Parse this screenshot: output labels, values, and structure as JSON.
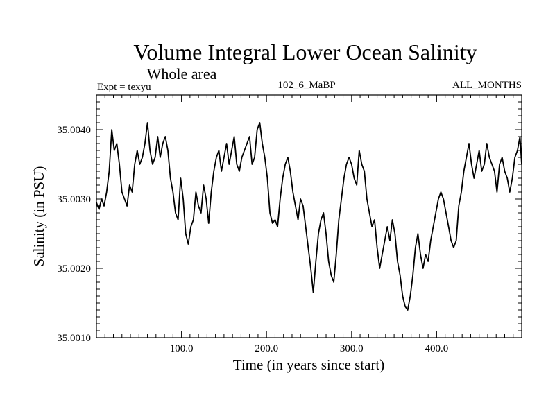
{
  "chart_data": {
    "type": "line",
    "title": "Volume Integral Lower Ocean Salinity",
    "subtitle": "Whole area",
    "annotations": {
      "left": "Expt = texyu",
      "center": "102_6_MaBP",
      "right": "ALL_MONTHS"
    },
    "xlabel": "Time (in years since start)",
    "ylabel": "Salinity (in PSU)",
    "xlim": [
      0,
      500
    ],
    "ylim": [
      35.001,
      35.0045
    ],
    "x_ticks": [
      100,
      200,
      300,
      400
    ],
    "x_tick_labels": [
      "100.0",
      "200.0",
      "300.0",
      "400.0"
    ],
    "y_ticks": [
      35.001,
      35.002,
      35.003,
      35.004
    ],
    "y_tick_labels": [
      "35.0010",
      "35.0020",
      "35.0030",
      "35.0040"
    ],
    "grid": false,
    "legend": "none",
    "series": [
      {
        "color": "#000000",
        "x": [
          0,
          3,
          6,
          9,
          12,
          15,
          18,
          21,
          24,
          27,
          30,
          33,
          36,
          39,
          42,
          45,
          48,
          51,
          54,
          57,
          60,
          63,
          66,
          69,
          72,
          75,
          78,
          81,
          84,
          87,
          90,
          93,
          96,
          99,
          102,
          105,
          108,
          111,
          114,
          117,
          120,
          123,
          126,
          129,
          132,
          135,
          138,
          141,
          144,
          147,
          150,
          153,
          156,
          159,
          162,
          165,
          168,
          171,
          174,
          177,
          180,
          183,
          186,
          189,
          192,
          195,
          198,
          201,
          204,
          207,
          210,
          213,
          216,
          219,
          222,
          225,
          228,
          231,
          234,
          237,
          240,
          243,
          246,
          249,
          252,
          255,
          258,
          261,
          264,
          267,
          270,
          273,
          276,
          279,
          282,
          285,
          288,
          291,
          294,
          297,
          300,
          303,
          306,
          309,
          312,
          315,
          318,
          321,
          324,
          327,
          330,
          333,
          336,
          339,
          342,
          345,
          348,
          351,
          354,
          357,
          360,
          363,
          366,
          369,
          372,
          375,
          378,
          381,
          384,
          387,
          390,
          393,
          396,
          399,
          402,
          405,
          408,
          411,
          414,
          417,
          420,
          423,
          426,
          429,
          432,
          435,
          438,
          441,
          444,
          447,
          450,
          453,
          456,
          459,
          462,
          465,
          468,
          471,
          474,
          477,
          480,
          483,
          486,
          489,
          492,
          495,
          498,
          500
        ],
        "y": [
          35.00295,
          35.00285,
          35.003,
          35.0029,
          35.0031,
          35.0034,
          35.004,
          35.0037,
          35.0038,
          35.0035,
          35.0031,
          35.003,
          35.0029,
          35.0032,
          35.0031,
          35.0035,
          35.0037,
          35.0035,
          35.0036,
          35.0038,
          35.0041,
          35.0037,
          35.0035,
          35.0036,
          35.0039,
          35.0036,
          35.0038,
          35.0039,
          35.0037,
          35.0033,
          35.0031,
          35.0028,
          35.0027,
          35.0033,
          35.003,
          35.0025,
          35.00235,
          35.0026,
          35.0027,
          35.0031,
          35.0029,
          35.0028,
          35.0032,
          35.003,
          35.00265,
          35.0031,
          35.0034,
          35.0036,
          35.0037,
          35.0034,
          35.0036,
          35.0038,
          35.0035,
          35.0037,
          35.0039,
          35.0035,
          35.0034,
          35.0036,
          35.0037,
          35.0038,
          35.0039,
          35.0035,
          35.0036,
          35.004,
          35.0041,
          35.0038,
          35.0036,
          35.0033,
          35.0028,
          35.00265,
          35.0027,
          35.0026,
          35.003,
          35.0033,
          35.0035,
          35.0036,
          35.0034,
          35.0031,
          35.0029,
          35.0027,
          35.003,
          35.0029,
          35.0026,
          35.0023,
          35.002,
          35.00165,
          35.0021,
          35.0025,
          35.0027,
          35.0028,
          35.0025,
          35.0021,
          35.0019,
          35.0018,
          35.0022,
          35.0027,
          35.003,
          35.0033,
          35.0035,
          35.0036,
          35.0035,
          35.0033,
          35.0032,
          35.0037,
          35.0035,
          35.0034,
          35.003,
          35.0028,
          35.0026,
          35.0027,
          35.0023,
          35.002,
          35.0022,
          35.0024,
          35.0026,
          35.0024,
          35.0027,
          35.0025,
          35.0021,
          35.0019,
          35.0016,
          35.00145,
          35.0014,
          35.0016,
          35.0019,
          35.0023,
          35.0025,
          35.0022,
          35.002,
          35.0022,
          35.0021,
          35.0024,
          35.0026,
          35.0028,
          35.003,
          35.0031,
          35.003,
          35.0028,
          35.0026,
          35.0024,
          35.0023,
          35.0024,
          35.0029,
          35.0031,
          35.0034,
          35.0036,
          35.0038,
          35.0035,
          35.0033,
          35.0035,
          35.0037,
          35.0034,
          35.0035,
          35.0038,
          35.0036,
          35.0035,
          35.0034,
          35.0031,
          35.0035,
          35.0036,
          35.0034,
          35.0033,
          35.0031,
          35.0033,
          35.0036,
          35.0037,
          35.0039,
          35.0035
        ]
      }
    ]
  }
}
